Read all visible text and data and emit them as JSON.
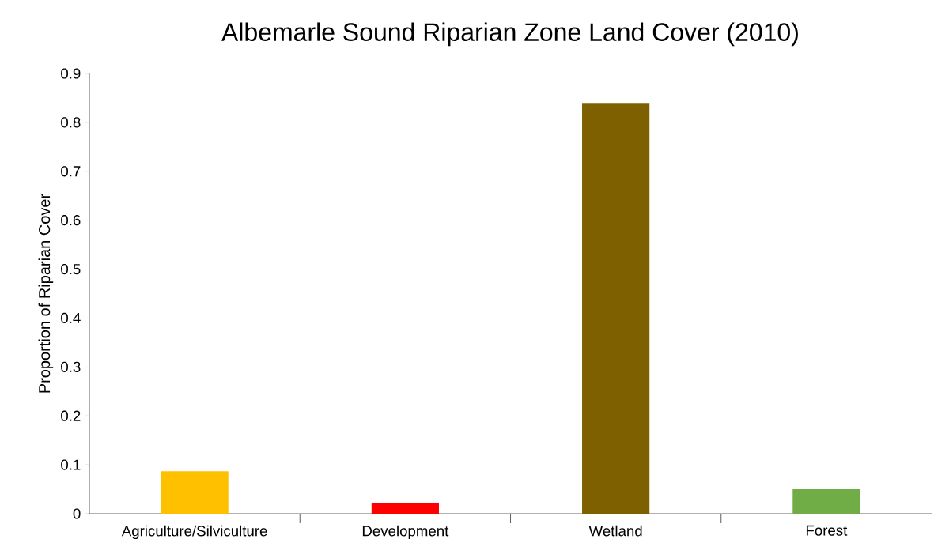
{
  "chart_data": {
    "type": "bar",
    "title": "Albemarle Sound Riparian Zone Land Cover (2010)",
    "ylabel": "Proportion of Riparian Cover",
    "categories": [
      "Agriculture/Silviculture",
      "Development",
      "Wetland",
      "Forest"
    ],
    "values": [
      0.087,
      0.021,
      0.84,
      0.05
    ],
    "colors": [
      "#ffc000",
      "#ff0000",
      "#7f6000",
      "#70ad47"
    ],
    "ylim": [
      0,
      0.9
    ],
    "yticks": [
      0,
      0.1,
      0.2,
      0.3,
      0.4,
      0.5,
      0.6,
      0.7,
      0.8,
      0.9
    ],
    "grid": false
  }
}
